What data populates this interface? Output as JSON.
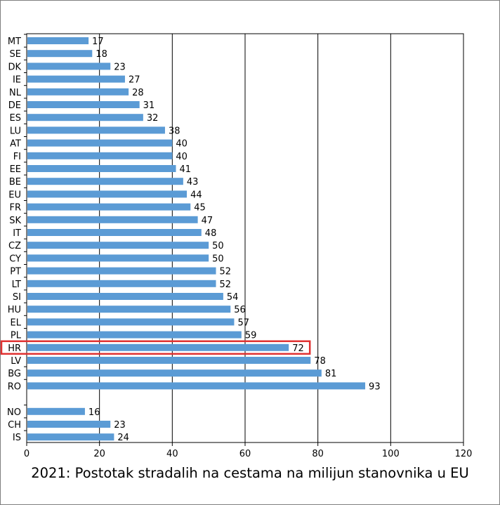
{
  "chart_data": {
    "type": "bar",
    "orientation": "horizontal",
    "title": "2021: Postotak stradalih na cestama na milijun stanovnika u EU",
    "xlabel": "",
    "ylabel": "",
    "xlim": [
      0,
      120
    ],
    "xticks": [
      0,
      20,
      40,
      60,
      80,
      100,
      120
    ],
    "grid": "vertical",
    "bar_color": "#5b9bd5",
    "highlight": {
      "category": "HR",
      "color": "#e03131"
    },
    "groups": [
      {
        "categories": [
          "MT",
          "SE",
          "DK",
          "IE",
          "NL",
          "DE",
          "ES",
          "LU",
          "AT",
          "FI",
          "EE",
          "BE",
          "EU",
          "FR",
          "SK",
          "IT",
          "CZ",
          "CY",
          "PT",
          "LT",
          "SI",
          "HU",
          "EL",
          "PL",
          "HR",
          "LV",
          "BG",
          "RO"
        ],
        "values": [
          17,
          18,
          23,
          27,
          28,
          31,
          32,
          38,
          40,
          40,
          41,
          43,
          44,
          45,
          47,
          48,
          50,
          50,
          52,
          52,
          54,
          56,
          57,
          59,
          72,
          78,
          81,
          93
        ]
      },
      {
        "categories": [
          "NO",
          "CH",
          "IS"
        ],
        "values": [
          16,
          23,
          24
        ]
      }
    ]
  }
}
